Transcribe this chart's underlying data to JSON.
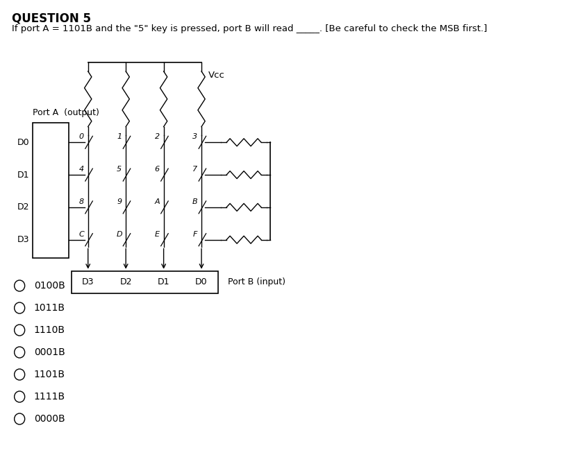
{
  "title": "QUESTION 5",
  "question_text": "If port A = 1101B and the \"5\" key is pressed, port B will read _____. [Be careful to check the MSB first.]",
  "port_a_label": "Port A  (output)",
  "port_b_label": "Port B (input)",
  "vcc_label": "Vcc",
  "row_labels": [
    "D0",
    "D1",
    "D2",
    "D3"
  ],
  "col_labels_bottom": [
    "D3",
    "D2",
    "D1",
    "D0"
  ],
  "keypad_rows": [
    [
      "0",
      "1",
      "2",
      "3"
    ],
    [
      "4",
      "5",
      "6",
      "7"
    ],
    [
      "8",
      "9",
      "A",
      "B"
    ],
    [
      "C",
      "D",
      "E",
      "F"
    ]
  ],
  "options": [
    "0100B",
    "1011B",
    "1110B",
    "0001B",
    "1101B",
    "1111B",
    "0000B"
  ],
  "bg_color": "#ffffff",
  "text_color": "#000000",
  "line_color": "#000000"
}
